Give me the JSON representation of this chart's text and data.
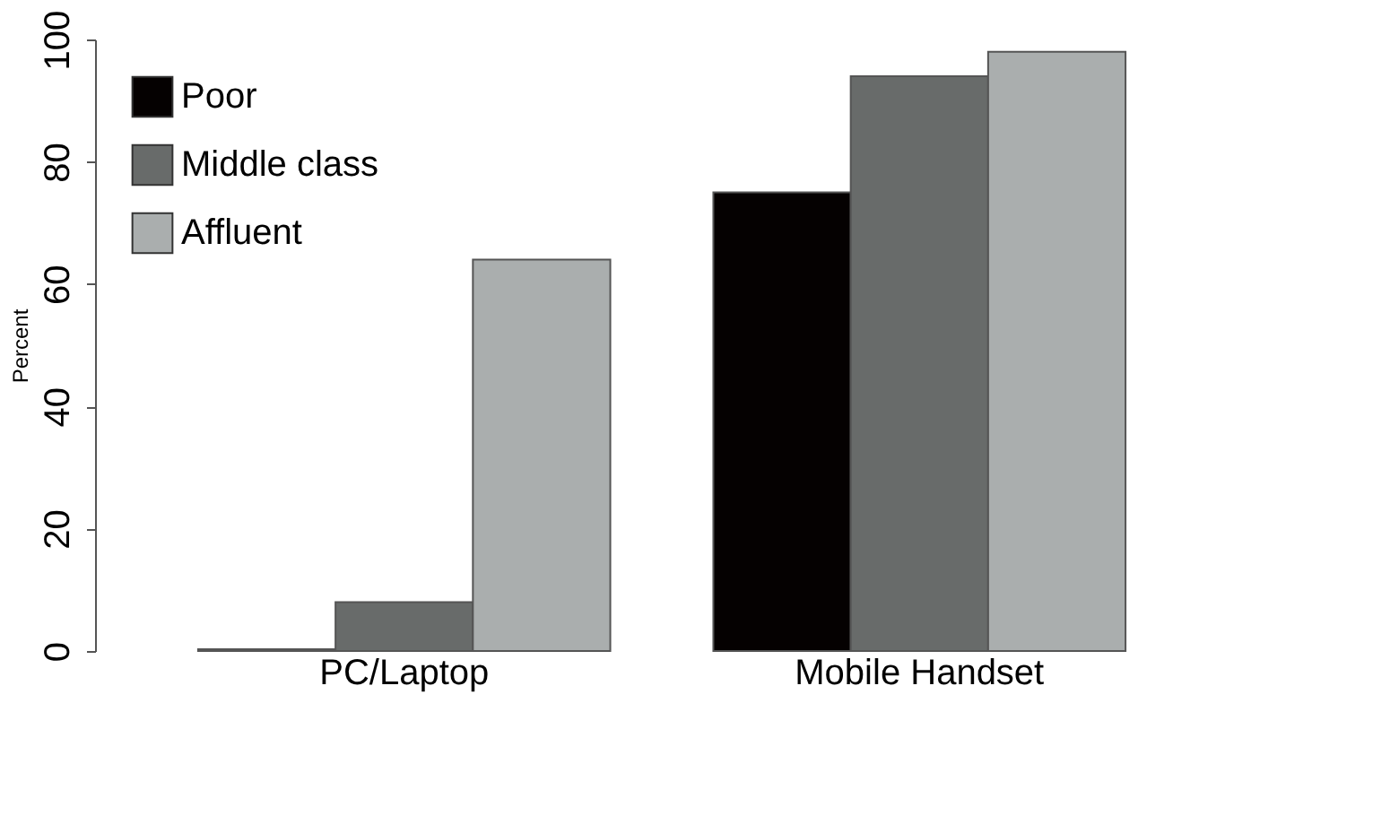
{
  "chart_data": {
    "type": "bar",
    "ylabel": "Percent",
    "categories": [
      "PC/Laptop",
      "Mobile Handset"
    ],
    "series": [
      {
        "name": "Poor",
        "color": "#050101",
        "values": [
          0.3,
          75
        ]
      },
      {
        "name": "Middle class",
        "color": "#686b6a",
        "values": [
          8,
          94
        ]
      },
      {
        "name": "Affluent",
        "color": "#aaaeae",
        "values": [
          64,
          98
        ]
      }
    ],
    "ylim": [
      0,
      100
    ],
    "yticks": [
      0,
      20,
      40,
      60,
      80,
      100
    ],
    "grid": false,
    "legend": "top left"
  }
}
